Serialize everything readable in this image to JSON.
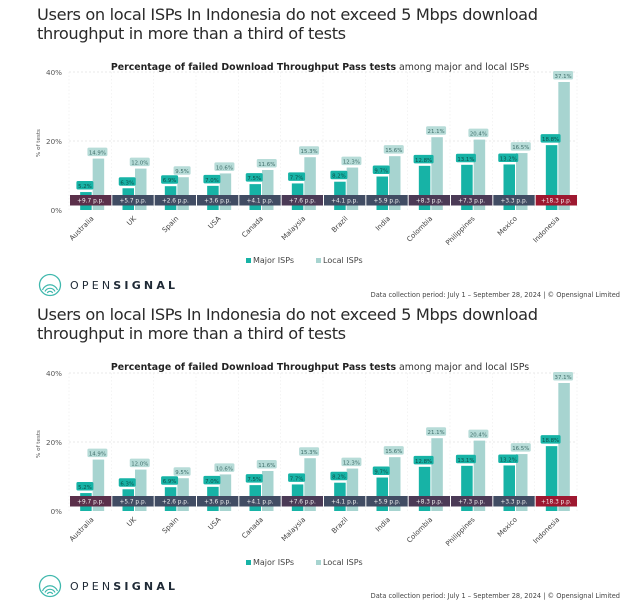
{
  "headline": "Users on local ISPs In Indonesia do not exceed 5 Mbps download throughput in more than a third of tests",
  "chart_title_bold": "Percentage of failed Download Throughput Pass tests",
  "chart_title_rest": " among major and local ISPs",
  "legend": {
    "major": "Major ISPs",
    "local": "Local ISPs"
  },
  "logo": {
    "part1": "OPEN",
    "part2": "SIGNAL"
  },
  "footer": "Data collection period: July 1 – September 28, 2024 |  © Opensignal Limited",
  "colors": {
    "major": "#17b3a6",
    "local": "#a7d4d0",
    "label_major_bg": "#17b3a6",
    "label_local_bg": "#b7dcd8",
    "diff_slate": "#414c63",
    "diff_purple": "#4b3a56",
    "diff_maroon": "#5b2f4a",
    "diff_red": "#9e1830"
  },
  "chart_data": {
    "type": "bar",
    "title": "Percentage of failed Download Throughput Pass tests among major and local ISPs",
    "xlabel": "",
    "ylabel": "% of tests",
    "ylim": [
      0,
      40
    ],
    "yticks": [
      0,
      20,
      40
    ],
    "ytick_labels": [
      "0%",
      "20%",
      "40%"
    ],
    "grid": true,
    "legend_position": "bottom",
    "categories": [
      "Australia",
      "UK",
      "Spain",
      "USA",
      "Canada",
      "Malaysia",
      "Brazil",
      "India",
      "Colombia",
      "Philippines",
      "Mexico",
      "Indonesia"
    ],
    "series": [
      {
        "name": "Major ISPs",
        "values": [
          5.2,
          6.3,
          6.9,
          7.0,
          7.5,
          7.7,
          8.2,
          9.7,
          12.8,
          13.1,
          13.2,
          18.8
        ],
        "labels": [
          "5.2%",
          "6.3%",
          "6.9%",
          "7.0%",
          "7.5%",
          "7.7%",
          "8.2%",
          "9.7%",
          "12.8%",
          "13.1%",
          "13.2%",
          "18.8%"
        ]
      },
      {
        "name": "Local ISPs",
        "values": [
          14.9,
          12.0,
          9.5,
          10.6,
          11.6,
          15.3,
          12.3,
          15.6,
          21.1,
          20.4,
          16.5,
          37.1
        ],
        "labels": [
          "14.9%",
          "12.0%",
          "9.5%",
          "10.6%",
          "11.6%",
          "15.3%",
          "12.3%",
          "15.6%",
          "21.1%",
          "20.4%",
          "16.5%",
          "37.1%"
        ]
      }
    ],
    "differences": {
      "values": [
        9.7,
        5.7,
        2.6,
        3.6,
        4.1,
        7.6,
        4.1,
        5.9,
        8.3,
        7.3,
        3.3,
        18.3
      ],
      "labels": [
        "+9.7 p.p.",
        "+5.7 p.p.",
        "+2.6 p.p.",
        "+3.6 p.p.",
        "+4.1 p.p.",
        "+7.6 p.p.",
        "+4.1 p.p.",
        "+5.9 p.p.",
        "+8.3 p.p.",
        "+7.3 p.p.",
        "+3.3 p.p.",
        "+18.3 p.p."
      ],
      "tones": [
        "maroon",
        "slate",
        "slate",
        "slate",
        "slate",
        "purple",
        "slate",
        "slate",
        "purple",
        "purple",
        "slate",
        "red"
      ]
    }
  }
}
